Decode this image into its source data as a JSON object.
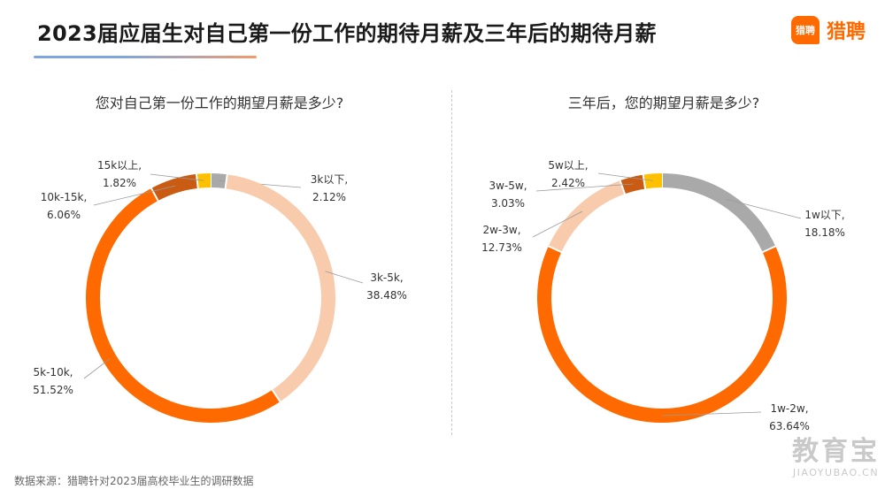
{
  "header": {
    "title": "2023届应届生对自己第一份工作的期待月薪及三年后的期待月薪",
    "brand_icon_text": "猎聘",
    "brand_name": "猎聘"
  },
  "colors": {
    "accent": "#ff6a00",
    "dark_orange": "#c95b12",
    "light_peach": "#f8cbad",
    "gray": "#a9a9a9",
    "gold": "#ffc000"
  },
  "chart_data": [
    {
      "type": "pie",
      "donut": true,
      "title": "您对自己第一份工作的期望月薪是多少?",
      "unit": "%",
      "slices": [
        {
          "label": "3k以下,",
          "value": 2.12,
          "value_label": "2.12%",
          "color": "#a9a9a9"
        },
        {
          "label": "3k-5k,",
          "value": 38.48,
          "value_label": "38.48%",
          "color": "#f8cbad"
        },
        {
          "label": "5k-10k,",
          "value": 51.52,
          "value_label": "51.52%",
          "color": "#ff6a00"
        },
        {
          "label": "10k-15k,",
          "value": 6.06,
          "value_label": "6.06%",
          "color": "#c95b12"
        },
        {
          "label": "15k以上,",
          "value": 1.82,
          "value_label": "1.82%",
          "color": "#ffc000"
        }
      ]
    },
    {
      "type": "pie",
      "donut": true,
      "title": "三年后，您的期望月薪是多少?",
      "unit": "%",
      "slices": [
        {
          "label": "1w以下,",
          "value": 18.18,
          "value_label": "18.18%",
          "color": "#a9a9a9"
        },
        {
          "label": "1w-2w,",
          "value": 63.64,
          "value_label": "63.64%",
          "color": "#ff6a00"
        },
        {
          "label": "2w-3w,",
          "value": 12.73,
          "value_label": "12.73%",
          "color": "#f8cbad"
        },
        {
          "label": "3w-5w,",
          "value": 3.03,
          "value_label": "3.03%",
          "color": "#c95b12"
        },
        {
          "label": "5w以上,",
          "value": 2.42,
          "value_label": "2.42%",
          "color": "#ffc000"
        }
      ]
    }
  ],
  "footer": {
    "source": "数据来源：猎聘针对2023届高校毕业生的调研数据"
  },
  "watermark": {
    "main": "教育宝",
    "sub": "JIAOYUBAO.CN"
  }
}
